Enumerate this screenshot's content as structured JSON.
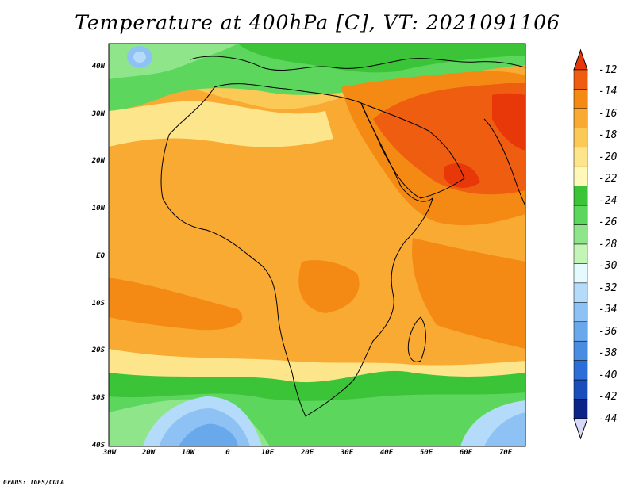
{
  "title": "Temperature at 400hPa [C], VT: 2021091106",
  "credit": "GrADS: IGES/COLA",
  "map": {
    "lat_labels": [
      "40N",
      "30N",
      "20N",
      "10N",
      "EQ",
      "10S",
      "20S",
      "30S",
      "40S"
    ],
    "lon_labels": [
      "30W",
      "20W",
      "10W",
      "0",
      "10E",
      "20E",
      "30E",
      "40E",
      "50E",
      "60E",
      "70E"
    ]
  },
  "colorbar": {
    "labels": [
      "-12",
      "-14",
      "-16",
      "-18",
      "-20",
      "-22",
      "-24",
      "-26",
      "-28",
      "-30",
      "-32",
      "-34",
      "-36",
      "-38",
      "-40",
      "-42",
      "-44"
    ],
    "colors": {
      "over": "#e8380a",
      "under": "#d8d8f8",
      "boxes": [
        "#ee5d10",
        "#f48a14",
        "#f8aa33",
        "#fbc955",
        "#fde58b",
        "#fff8b8",
        "#3bc438",
        "#5cd65c",
        "#8fe68a",
        "#c2f5b6",
        "#e4fafe",
        "#b4dcfa",
        "#8ec2f4",
        "#6aa8ec",
        "#4a8ce2",
        "#2c6ed8",
        "#1a4cbc",
        "#0a2488"
      ]
    }
  }
}
